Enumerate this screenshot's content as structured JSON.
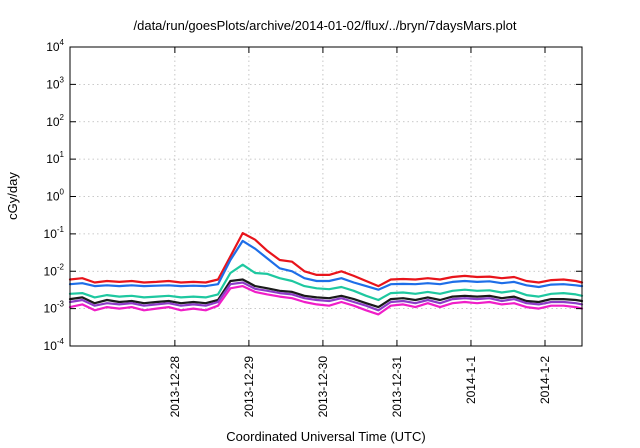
{
  "chart_data": {
    "type": "line",
    "title": "/data/run/goesPlots/archive/2014-01-02/flux/../bryn/7daysMars.plot",
    "xlabel": "Coordinated Universal Time (UTC)",
    "ylabel": "cGy/day",
    "y_scale": "log",
    "ylim": [
      0.0001,
      10000
    ],
    "y_ticks": [
      {
        "base": "10",
        "exp": "-4",
        "value": 0.0001
      },
      {
        "base": "10",
        "exp": "-3",
        "value": 0.001
      },
      {
        "base": "10",
        "exp": "-2",
        "value": 0.01
      },
      {
        "base": "10",
        "exp": "-1",
        "value": 0.1
      },
      {
        "base": "10",
        "exp": "0",
        "value": 1
      },
      {
        "base": "10",
        "exp": "1",
        "value": 10
      },
      {
        "base": "10",
        "exp": "2",
        "value": 100
      },
      {
        "base": "10",
        "exp": "3",
        "value": 1000
      },
      {
        "base": "10",
        "exp": "4",
        "value": 10000
      }
    ],
    "x_range": [
      "2013-12-27T02:00",
      "2014-01-03T00:00"
    ],
    "x_ticks": [
      {
        "label": "2013-12-28",
        "at": "2013-12-28T12:00"
      },
      {
        "label": "2013-12-29",
        "at": "2013-12-29T12:00"
      },
      {
        "label": "2013-12-30",
        "at": "2013-12-30T12:00"
      },
      {
        "label": "2013-12-31",
        "at": "2013-12-31T12:00"
      },
      {
        "label": "2014-1-1",
        "at": "2014-01-01T12:00"
      },
      {
        "label": "2014-1-2",
        "at": "2014-01-02T12:00"
      }
    ],
    "grid": true,
    "legend": "none",
    "x": [
      "2013-12-27T02:00",
      "2013-12-27T06:00",
      "2013-12-27T10:00",
      "2013-12-27T14:00",
      "2013-12-27T18:00",
      "2013-12-27T22:00",
      "2013-12-28T02:00",
      "2013-12-28T06:00",
      "2013-12-28T10:00",
      "2013-12-28T14:00",
      "2013-12-28T18:00",
      "2013-12-28T22:00",
      "2013-12-29T02:00",
      "2013-12-29T06:00",
      "2013-12-29T10:00",
      "2013-12-29T14:00",
      "2013-12-29T18:00",
      "2013-12-29T22:00",
      "2013-12-30T02:00",
      "2013-12-30T06:00",
      "2013-12-30T10:00",
      "2013-12-30T14:00",
      "2013-12-30T18:00",
      "2013-12-30T22:00",
      "2013-12-31T02:00",
      "2013-12-31T06:00",
      "2013-12-31T10:00",
      "2013-12-31T14:00",
      "2013-12-31T18:00",
      "2013-12-31T22:00",
      "2014-01-01T02:00",
      "2014-01-01T06:00",
      "2014-01-01T10:00",
      "2014-01-01T14:00",
      "2014-01-01T18:00",
      "2014-01-01T22:00",
      "2014-01-02T02:00",
      "2014-01-02T06:00",
      "2014-01-02T10:00",
      "2014-01-02T14:00",
      "2014-01-02T18:00",
      "2014-01-02T22:00",
      "2014-01-03T00:00"
    ],
    "series": [
      {
        "color": "#e8141b",
        "values": [
          0.006,
          0.0065,
          0.005,
          0.0055,
          0.0052,
          0.0055,
          0.005,
          0.0052,
          0.0055,
          0.005,
          0.0052,
          0.005,
          0.006,
          0.025,
          0.105,
          0.07,
          0.035,
          0.02,
          0.018,
          0.01,
          0.008,
          0.008,
          0.01,
          0.0075,
          0.0055,
          0.004,
          0.006,
          0.0062,
          0.006,
          0.0065,
          0.006,
          0.007,
          0.0075,
          0.007,
          0.0072,
          0.0065,
          0.007,
          0.0055,
          0.005,
          0.0058,
          0.006,
          0.0055,
          0.005
        ]
      },
      {
        "color": "#1e6ee8",
        "values": [
          0.0045,
          0.0048,
          0.004,
          0.0042,
          0.004,
          0.0042,
          0.004,
          0.0041,
          0.0042,
          0.004,
          0.0041,
          0.004,
          0.0045,
          0.02,
          0.065,
          0.04,
          0.022,
          0.012,
          0.01,
          0.0065,
          0.0055,
          0.0055,
          0.0065,
          0.005,
          0.004,
          0.0032,
          0.0045,
          0.0046,
          0.0045,
          0.0048,
          0.0045,
          0.0052,
          0.0055,
          0.0052,
          0.0054,
          0.0048,
          0.0052,
          0.0042,
          0.0038,
          0.0044,
          0.0045,
          0.0042,
          0.004
        ]
      },
      {
        "color": "#1ec8a0",
        "values": [
          0.0025,
          0.0026,
          0.002,
          0.0023,
          0.0021,
          0.0022,
          0.002,
          0.0021,
          0.0022,
          0.002,
          0.0021,
          0.002,
          0.0024,
          0.009,
          0.015,
          0.009,
          0.0085,
          0.0065,
          0.0055,
          0.004,
          0.0035,
          0.0033,
          0.0038,
          0.003,
          0.0022,
          0.0017,
          0.0026,
          0.0027,
          0.0025,
          0.0028,
          0.0025,
          0.003,
          0.0032,
          0.003,
          0.0031,
          0.0027,
          0.003,
          0.0023,
          0.0021,
          0.0025,
          0.0026,
          0.0024,
          0.0022
        ]
      },
      {
        "color": "#1a1a1a",
        "values": [
          0.0018,
          0.002,
          0.0014,
          0.0017,
          0.0015,
          0.0016,
          0.0014,
          0.0015,
          0.0016,
          0.0014,
          0.0015,
          0.0014,
          0.0017,
          0.0055,
          0.006,
          0.004,
          0.0035,
          0.003,
          0.0028,
          0.0022,
          0.002,
          0.0019,
          0.0022,
          0.0018,
          0.0014,
          0.0011,
          0.0018,
          0.0019,
          0.0017,
          0.002,
          0.0017,
          0.0021,
          0.0022,
          0.0021,
          0.0022,
          0.0019,
          0.0021,
          0.0016,
          0.0015,
          0.0018,
          0.0018,
          0.0017,
          0.0016
        ]
      },
      {
        "color": "#8c3cc8",
        "values": [
          0.0015,
          0.0017,
          0.0012,
          0.0014,
          0.0013,
          0.0014,
          0.0012,
          0.0013,
          0.0014,
          0.0012,
          0.0013,
          0.0012,
          0.0015,
          0.0045,
          0.005,
          0.0034,
          0.003,
          0.0026,
          0.0024,
          0.0019,
          0.0017,
          0.0016,
          0.0019,
          0.0015,
          0.0012,
          0.0009,
          0.0015,
          0.0016,
          0.0014,
          0.0017,
          0.0014,
          0.0018,
          0.0019,
          0.0018,
          0.0019,
          0.0016,
          0.0018,
          0.0014,
          0.0013,
          0.0015,
          0.0015,
          0.0014,
          0.0013
        ]
      },
      {
        "color": "#f01ec8",
        "values": [
          0.0011,
          0.0013,
          0.0009,
          0.0011,
          0.001,
          0.0011,
          0.0009,
          0.001,
          0.0011,
          0.0009,
          0.001,
          0.0009,
          0.0012,
          0.0035,
          0.004,
          0.0028,
          0.0024,
          0.0021,
          0.0019,
          0.0015,
          0.0013,
          0.0012,
          0.0015,
          0.0012,
          0.0009,
          0.0007,
          0.0012,
          0.0013,
          0.0011,
          0.0014,
          0.0011,
          0.0014,
          0.0015,
          0.0014,
          0.0015,
          0.0013,
          0.0014,
          0.0011,
          0.001,
          0.0012,
          0.0012,
          0.0011,
          0.001
        ]
      }
    ]
  }
}
